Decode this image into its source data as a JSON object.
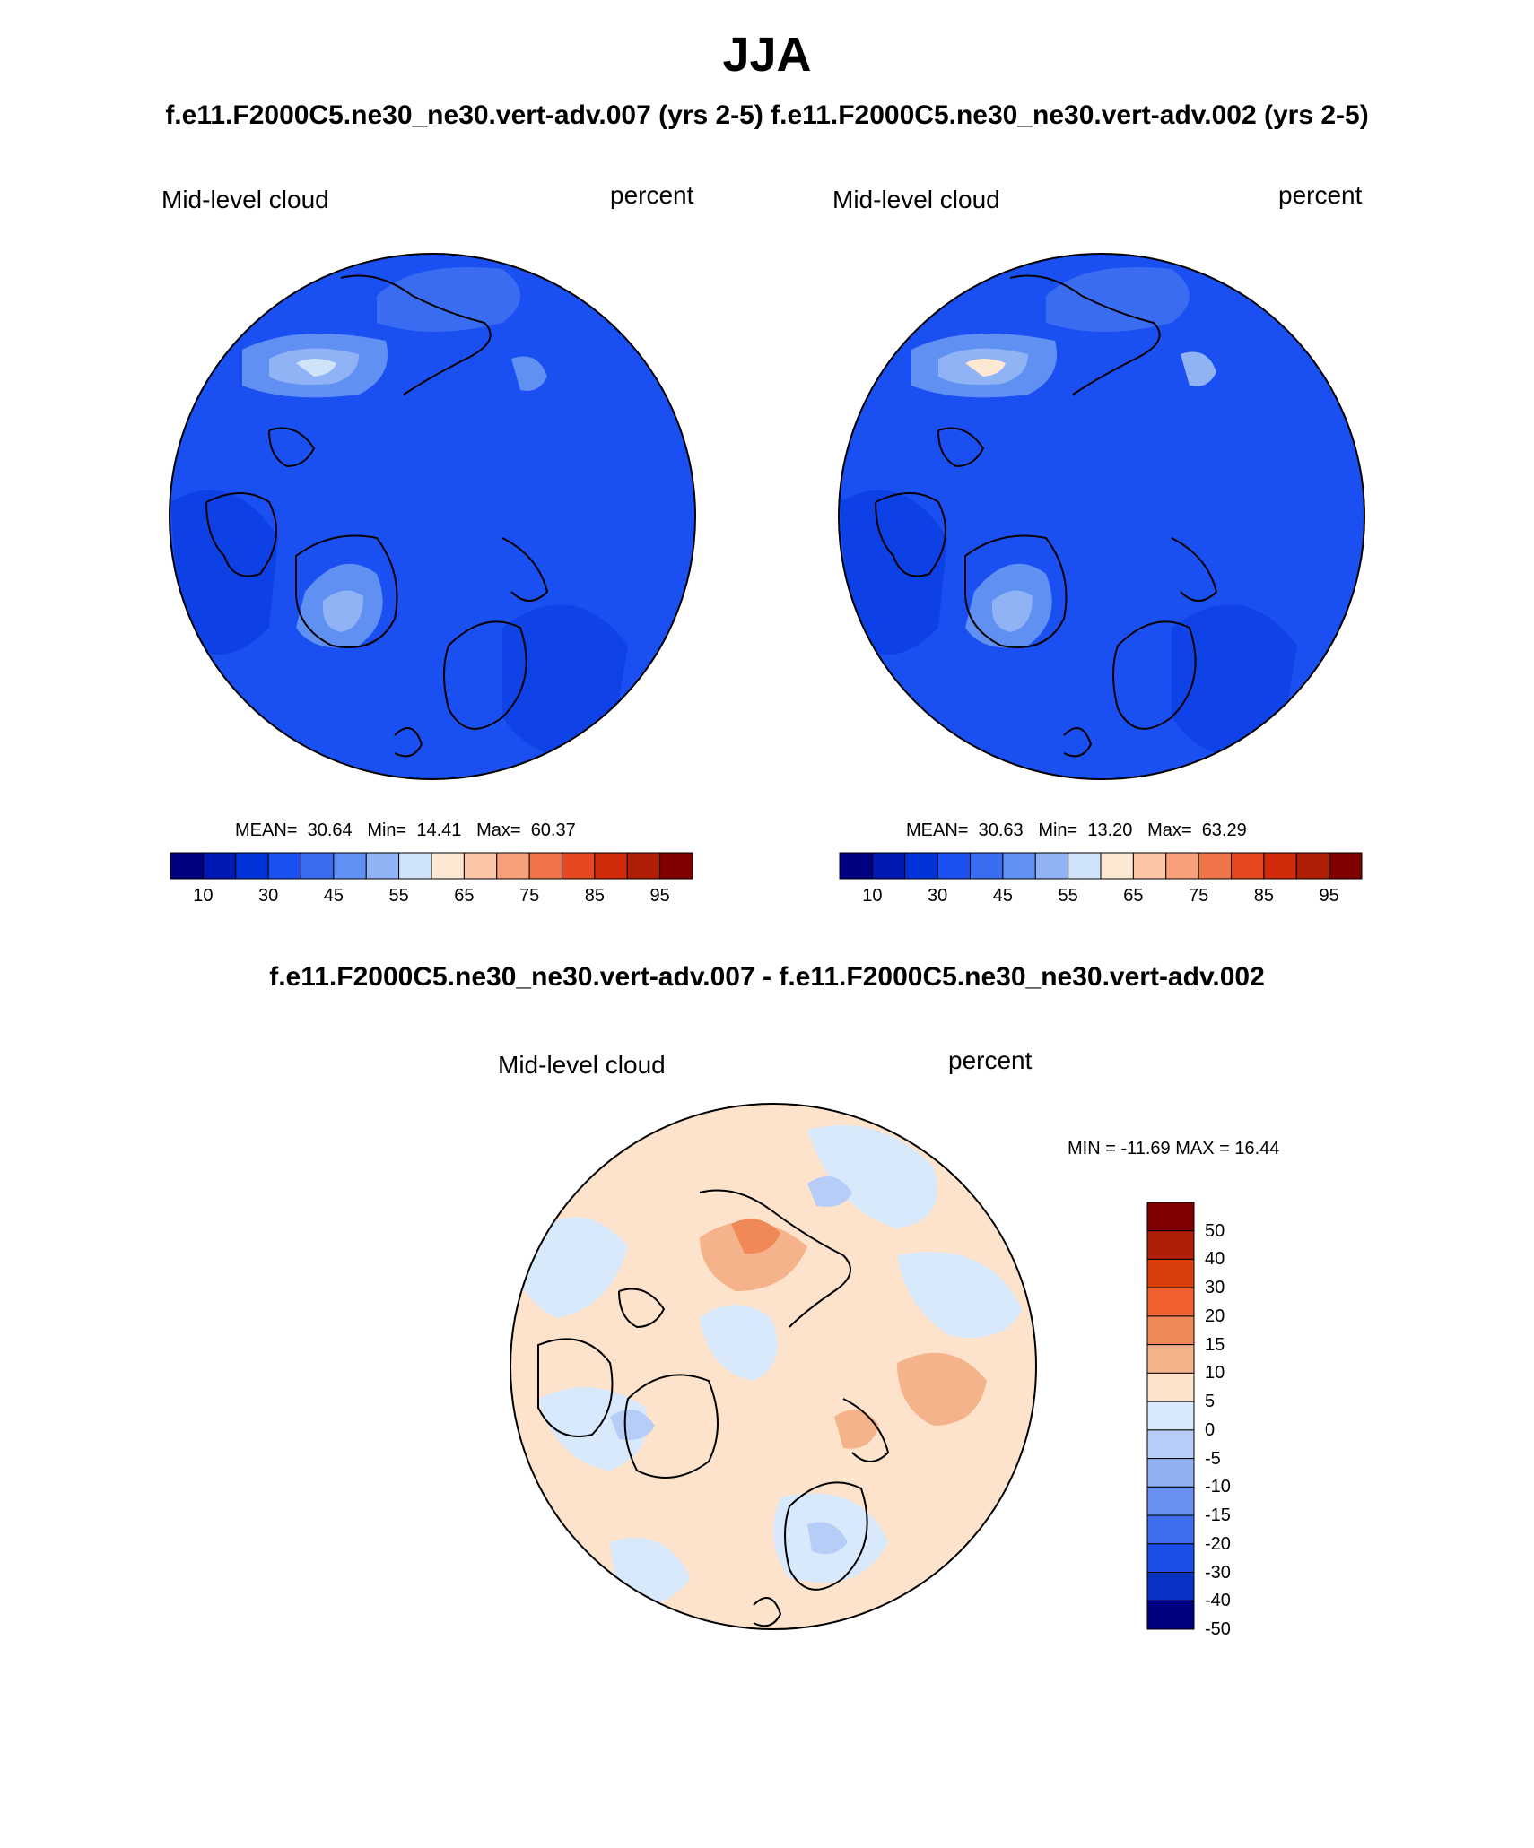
{
  "title": "JJA",
  "subtitle": "f.e11.F2000C5.ne30_ne30.vert-adv.007 (yrs 2-5)  f.e11.F2000C5.ne30_ne30.vert-adv.002 (yrs 2-5)",
  "panels": [
    {
      "variable": "Mid-level cloud",
      "units": "percent",
      "stats": {
        "mean_label": "MEAN=",
        "mean": "30.64",
        "min_label": "Min=",
        "min": "14.41",
        "max_label": "Max=",
        "max": "60.37"
      }
    },
    {
      "variable": "Mid-level cloud",
      "units": "percent",
      "stats": {
        "mean_label": "MEAN=",
        "mean": "30.63",
        "min_label": "Min=",
        "min": "13.20",
        "max_label": "Max=",
        "max": "63.29"
      }
    }
  ],
  "colorbar": {
    "colors": [
      "#000080",
      "#0019b3",
      "#0033d9",
      "#1a4ff2",
      "#3a6cf2",
      "#6090f2",
      "#90b3f5",
      "#cfe3fb",
      "#fde8d4",
      "#fbc6a6",
      "#f7a07a",
      "#f0744a",
      "#e6481f",
      "#d02a0a",
      "#b01e05",
      "#800000"
    ],
    "ticks": [
      "10",
      "30",
      "45",
      "55",
      "65",
      "75",
      "85",
      "95"
    ]
  },
  "difference": {
    "title": "f.e11.F2000C5.ne30_ne30.vert-adv.007 - f.e11.F2000C5.ne30_ne30.vert-adv.002",
    "variable": "Mid-level cloud",
    "units": "percent",
    "minmax": "MIN = -11.69 MAX =  16.44",
    "colors": [
      "#800000",
      "#b01e05",
      "#d83d0e",
      "#f06030",
      "#f08858",
      "#f5b38c",
      "#fde3cc",
      "#d8e9fb",
      "#b6cdf7",
      "#8fb0f2",
      "#6a90f2",
      "#3f6df0",
      "#1a4ee6",
      "#0a30c6",
      "#000080"
    ],
    "ticks": [
      "50",
      "40",
      "30",
      "20",
      "15",
      "10",
      "5",
      "0",
      "-5",
      "-10",
      "-15",
      "-20",
      "-30",
      "-40",
      "-50"
    ]
  }
}
